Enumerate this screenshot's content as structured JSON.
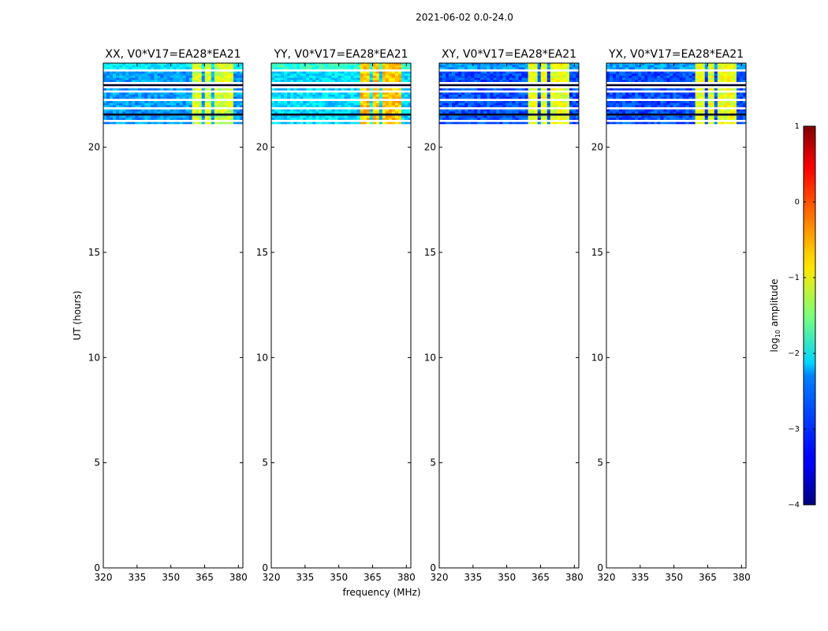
{
  "figure_title": "2021-06-02 0.0-24.0",
  "chart_data": [
    {
      "type": "heatmap",
      "title": "XX, V0*V17=EA28*EA21",
      "xlabel": "",
      "ylabel": "UT (hours)",
      "xlim": [
        320,
        382
      ],
      "ylim": [
        0,
        24
      ],
      "xticks": [
        320,
        335,
        350,
        365,
        380
      ],
      "yticks": [
        0,
        5,
        10,
        15,
        20
      ],
      "data_extent_ut": [
        21.0,
        24.0
      ],
      "rfi_bands_mhz": [
        [
          359.5,
          364
        ],
        [
          364.5,
          368.5
        ],
        [
          369.5,
          373
        ],
        [
          374,
          378
        ]
      ],
      "baseline_log_amplitude": -2.6,
      "band_log_amplitude": -1.1
    },
    {
      "type": "heatmap",
      "title": "YY, V0*V17=EA28*EA21",
      "xlabel": "frequency (MHz)",
      "ylabel": "",
      "xlim": [
        320,
        382
      ],
      "ylim": [
        0,
        24
      ],
      "xticks": [
        320,
        335,
        350,
        365,
        380
      ],
      "yticks": [
        0,
        5,
        10,
        15,
        20
      ],
      "data_extent_ut": [
        21.0,
        24.0
      ],
      "rfi_bands_mhz": [
        [
          359.5,
          364
        ],
        [
          364.5,
          368.5
        ],
        [
          369.5,
          373
        ],
        [
          374,
          378
        ]
      ],
      "baseline_log_amplitude": -2.3,
      "band_log_amplitude": -0.6
    },
    {
      "type": "heatmap",
      "title": "XY, V0*V17=EA28*EA21",
      "xlabel": "",
      "ylabel": "",
      "xlim": [
        320,
        382
      ],
      "ylim": [
        0,
        24
      ],
      "xticks": [
        320,
        335,
        350,
        365,
        380
      ],
      "yticks": [
        0,
        5,
        10,
        15,
        20
      ],
      "data_extent_ut": [
        21.0,
        24.0
      ],
      "rfi_bands_mhz": [
        [
          359.5,
          364
        ],
        [
          364.5,
          368.5
        ],
        [
          369.5,
          373
        ],
        [
          374,
          378
        ]
      ],
      "baseline_log_amplitude": -3.0,
      "band_log_amplitude": -1.0
    },
    {
      "type": "heatmap",
      "title": "YX, V0*V17=EA28*EA21",
      "xlabel": "",
      "ylabel": "",
      "xlim": [
        320,
        382
      ],
      "ylim": [
        0,
        24
      ],
      "xticks": [
        320,
        335,
        350,
        365,
        380
      ],
      "yticks": [
        0,
        5,
        10,
        15,
        20
      ],
      "data_extent_ut": [
        21.0,
        24.0
      ],
      "rfi_bands_mhz": [
        [
          359.5,
          364
        ],
        [
          364.5,
          368.5
        ],
        [
          369.5,
          373
        ],
        [
          374,
          378
        ]
      ],
      "baseline_log_amplitude": -3.0,
      "band_log_amplitude": -1.0
    }
  ],
  "colorbar": {
    "label": "log",
    "label_sub": "10",
    "label_rest": " amplitude",
    "range": [
      -4,
      1
    ],
    "ticks": [
      1,
      0,
      -1,
      -2,
      -3,
      -4
    ],
    "tick_labels": [
      "1",
      "0",
      "−1",
      "−2",
      "−3",
      "−4"
    ]
  }
}
